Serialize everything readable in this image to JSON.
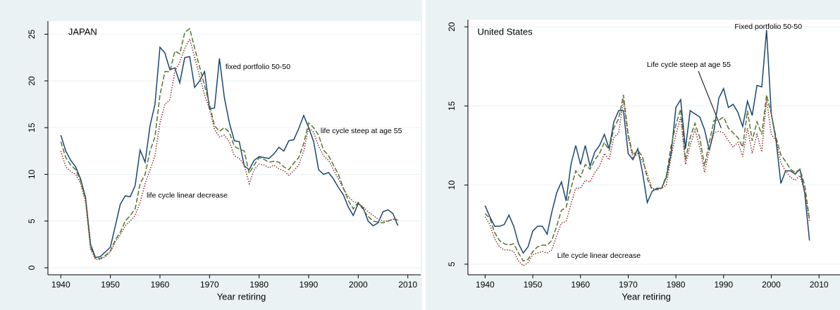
{
  "chart_data": [
    {
      "type": "line",
      "title": "JAPAN",
      "xlabel": "Year retiring",
      "x": [
        1940,
        1941,
        1942,
        1943,
        1944,
        1945,
        1946,
        1947,
        1948,
        1949,
        1950,
        1951,
        1952,
        1953,
        1954,
        1955,
        1956,
        1957,
        1958,
        1959,
        1960,
        1961,
        1962,
        1963,
        1964,
        1965,
        1966,
        1967,
        1968,
        1969,
        1970,
        1971,
        1972,
        1973,
        1974,
        1975,
        1976,
        1977,
        1978,
        1979,
        1980,
        1981,
        1982,
        1983,
        1984,
        1985,
        1986,
        1987,
        1988,
        1989,
        1990,
        1991,
        1992,
        1993,
        1994,
        1995,
        1996,
        1997,
        1998,
        1999,
        2000,
        2001,
        2002,
        2003,
        2004,
        2005,
        2006,
        2007,
        2008
      ],
      "xlim": [
        1937.4,
        2012.6
      ],
      "xticks": [
        1940,
        1950,
        1960,
        1970,
        1980,
        1990,
        2000,
        2010
      ],
      "ylim": [
        -0.75,
        26.4
      ],
      "yticks": [
        0,
        5,
        10,
        15,
        20,
        25
      ],
      "grid": true,
      "series": [
        {
          "name": "fixed portfolio 50-50",
          "color": "#1a476f",
          "style": "solid",
          "values": [
            14.2,
            12.5,
            11.5,
            10.8,
            9.5,
            7.5,
            2.5,
            1.1,
            1.2,
            1.7,
            2.2,
            4.5,
            6.8,
            7.7,
            7.6,
            8.8,
            12.6,
            11.3,
            15.2,
            17.5,
            23.6,
            23.0,
            21.2,
            21.4,
            19.8,
            22.5,
            22.6,
            19.3,
            20.0,
            21.0,
            17.0,
            17.1,
            22.4,
            18.2,
            15.5,
            13.6,
            13.5,
            10.9,
            10.5,
            11.5,
            11.9,
            11.8,
            11.7,
            12.2,
            12.9,
            12.5,
            13.6,
            13.7,
            14.9,
            16.3,
            15.0,
            13.5,
            10.5,
            10.0,
            10.2,
            9.5,
            8.6,
            7.8,
            6.5,
            5.6,
            6.9,
            6.4,
            5.0,
            4.5,
            4.8,
            6.0,
            6.2,
            5.8,
            4.5
          ]
        },
        {
          "name": "life cycle steep at age 55",
          "color": "#55752f",
          "style": "dashed",
          "values": [
            13.5,
            11.8,
            11.0,
            10.5,
            9.3,
            7.3,
            2.2,
            1.0,
            1.0,
            1.3,
            1.8,
            3.0,
            3.8,
            5.0,
            5.6,
            6.3,
            9.0,
            10.0,
            12.5,
            14.0,
            18.5,
            21.0,
            21.0,
            23.2,
            22.9,
            25.2,
            25.6,
            23.5,
            21.5,
            19.5,
            17.5,
            15.2,
            14.6,
            15.0,
            14.5,
            13.0,
            12.7,
            12.5,
            10.1,
            11.0,
            11.8,
            11.6,
            11.3,
            11.4,
            11.3,
            10.8,
            10.5,
            11.2,
            11.8,
            13.3,
            15.5,
            15.0,
            14.2,
            12.6,
            12.0,
            11.0,
            10.0,
            8.5,
            7.2,
            6.3,
            7.0,
            6.2,
            5.5,
            5.0,
            4.9,
            4.8,
            5.0,
            5.2,
            5.1
          ]
        },
        {
          "name": "life cycle linear decrease",
          "color": "#90353b",
          "style": "dotted",
          "values": [
            12.5,
            10.8,
            10.3,
            10.0,
            9.0,
            7.0,
            2.0,
            0.9,
            0.9,
            1.2,
            1.7,
            2.8,
            3.5,
            4.5,
            5.0,
            5.6,
            7.0,
            9.0,
            10.5,
            12.0,
            15.5,
            17.5,
            18.0,
            21.0,
            22.0,
            23.5,
            24.5,
            22.5,
            20.5,
            18.5,
            17.0,
            14.8,
            14.0,
            14.2,
            13.5,
            12.0,
            11.7,
            11.0,
            9.0,
            10.5,
            11.1,
            11.0,
            10.7,
            11.0,
            10.6,
            10.4,
            9.9,
            10.4,
            11.0,
            12.5,
            15.0,
            14.5,
            13.0,
            12.0,
            11.5,
            10.5,
            9.5,
            8.5,
            7.6,
            7.1,
            6.9,
            6.5,
            6.0,
            5.6,
            5.2,
            5.0,
            5.0,
            5.2,
            5.2
          ]
        }
      ]
    },
    {
      "type": "line",
      "title": "United States",
      "xlabel": "Year retiring",
      "x": [
        1940,
        1941,
        1942,
        1943,
        1944,
        1945,
        1946,
        1947,
        1948,
        1949,
        1950,
        1951,
        1952,
        1953,
        1954,
        1955,
        1956,
        1957,
        1958,
        1959,
        1960,
        1961,
        1962,
        1963,
        1964,
        1965,
        1966,
        1967,
        1968,
        1969,
        1970,
        1971,
        1972,
        1973,
        1974,
        1975,
        1976,
        1977,
        1978,
        1979,
        1980,
        1981,
        1982,
        1983,
        1984,
        1985,
        1986,
        1987,
        1988,
        1989,
        1990,
        1991,
        1992,
        1993,
        1994,
        1995,
        1996,
        1997,
        1998,
        1999,
        2000,
        2001,
        2002,
        2003,
        2004,
        2005,
        2006,
        2007,
        2008
      ],
      "xlim": [
        1936.4,
        2014.4
      ],
      "xticks": [
        1940,
        1950,
        1960,
        1970,
        1980,
        1990,
        2000,
        2010
      ],
      "ylim": [
        4.33,
        20.45
      ],
      "yticks": [
        5,
        10,
        15,
        20
      ],
      "grid": true,
      "series": [
        {
          "name": "Fixed portfolio 50-50",
          "color": "#1a476f",
          "style": "solid",
          "values": [
            8.7,
            8.0,
            7.4,
            7.4,
            7.5,
            8.1,
            7.4,
            6.3,
            5.7,
            6.1,
            7.1,
            7.4,
            7.4,
            6.9,
            8.3,
            9.5,
            10.2,
            9.0,
            11.3,
            12.5,
            11.3,
            12.5,
            11.2,
            12.1,
            12.5,
            13.2,
            12.3,
            14.0,
            14.7,
            14.7,
            12.0,
            11.6,
            12.3,
            10.8,
            8.9,
            9.6,
            9.8,
            9.8,
            10.5,
            12.0,
            14.9,
            15.4,
            12.3,
            14.7,
            14.5,
            14.3,
            13.5,
            12.2,
            13.5,
            15.5,
            16.1,
            14.9,
            15.1,
            14.6,
            13.7,
            15.3,
            14.4,
            16.3,
            16.2,
            19.8,
            14.5,
            12.8,
            10.1,
            10.9,
            10.9,
            10.7,
            11.0,
            9.5,
            6.5
          ]
        },
        {
          "name": "Life cycle steep at age 55",
          "color": "#55752f",
          "style": "dashed",
          "values": [
            8.2,
            7.9,
            7.0,
            6.5,
            6.3,
            6.2,
            6.3,
            5.7,
            5.2,
            5.3,
            5.8,
            6.1,
            6.2,
            6.2,
            6.5,
            7.4,
            8.4,
            8.6,
            9.8,
            10.9,
            10.5,
            11.3,
            11.0,
            11.6,
            12.0,
            12.7,
            12.2,
            13.6,
            14.2,
            15.7,
            13.2,
            11.9,
            12.2,
            11.8,
            10.4,
            9.7,
            9.7,
            9.8,
            10.6,
            12.5,
            13.8,
            14.8,
            11.6,
            13.0,
            13.9,
            13.0,
            11.2,
            12.7,
            14.1,
            14.1,
            14.3,
            13.6,
            13.3,
            13.0,
            12.4,
            14.7,
            12.8,
            14.0,
            13.2,
            15.7,
            14.5,
            13.0,
            11.9,
            11.5,
            11.0,
            10.8,
            11.0,
            10.0,
            7.8
          ]
        },
        {
          "name": "Life cycle linear decrease",
          "color": "#90353b",
          "style": "dotted",
          "values": [
            8.0,
            7.5,
            6.6,
            6.1,
            5.9,
            5.9,
            5.8,
            5.2,
            4.9,
            5.1,
            5.6,
            5.7,
            5.8,
            5.7,
            5.9,
            6.8,
            7.6,
            7.7,
            8.8,
            9.8,
            9.8,
            10.3,
            10.2,
            10.8,
            11.2,
            12.0,
            11.6,
            13.0,
            13.3,
            15.4,
            13.0,
            11.7,
            12.0,
            11.5,
            10.7,
            9.8,
            9.7,
            9.8,
            10.0,
            11.8,
            13.2,
            14.3,
            11.3,
            12.5,
            13.5,
            12.4,
            10.8,
            12.2,
            13.3,
            13.4,
            13.3,
            12.8,
            12.4,
            12.7,
            11.8,
            13.6,
            12.0,
            13.2,
            12.1,
            15.4,
            13.2,
            12.8,
            11.4,
            10.9,
            10.5,
            10.3,
            10.6,
            9.6,
            7.7
          ]
        }
      ]
    }
  ]
}
